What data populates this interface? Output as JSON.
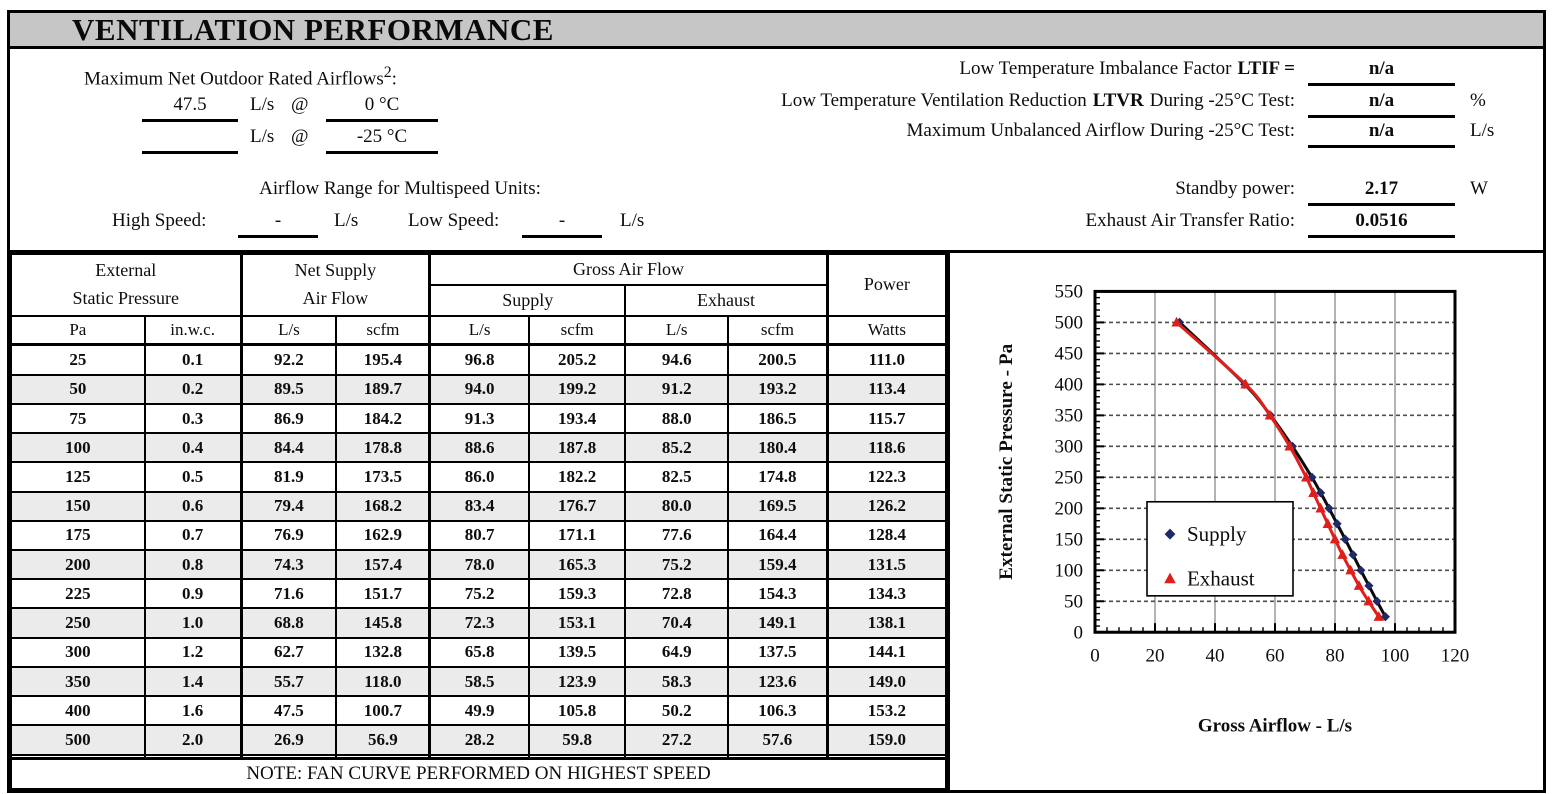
{
  "title": "VENTILATION PERFORMANCE",
  "airflows": {
    "label": "Maximum Net Outdoor Rated Airflows",
    "sup": "2",
    "colon": ":",
    "row_0c": {
      "value": "47.5",
      "unit": "L/s",
      "at": "@",
      "temp": "0 °C"
    },
    "row_m25c": {
      "value": "",
      "unit": "L/s",
      "at": "@",
      "temp": "-25 °C"
    }
  },
  "multispeed": {
    "label": "Airflow Range for Multispeed Units:",
    "high_label": "High Speed:",
    "high_value": "-",
    "high_unit": "L/s",
    "low_label": "Low Speed:",
    "low_value": "-",
    "low_unit": "L/s"
  },
  "low_temp": {
    "ltif_label": "Low Temperature Imbalance Factor",
    "ltif_bold": "LTIF =",
    "ltif_value": "n/a",
    "ltvr_label_pre": "Low Temperature Ventilation Reduction",
    "ltvr_bold": "LTVR",
    "ltvr_label_post": "During -25°C Test:",
    "ltvr_value": "n/a",
    "ltvr_unit": "%",
    "max_unbalanced_label": "Maximum Unbalanced Airflow During -25°C Test:",
    "max_unbalanced_value": "n/a",
    "max_unbalanced_unit": "L/s"
  },
  "standby": {
    "label": "Standby power:",
    "value": "2.17",
    "unit": "W"
  },
  "eatr": {
    "label": "Exhaust Air Transfer Ratio:",
    "value": "0.0516"
  },
  "table": {
    "headers": {
      "esp_line1": "External",
      "esp_line2": "Static Pressure",
      "net_line1": "Net Supply",
      "net_line2": "Air Flow",
      "gross": "Gross Air Flow",
      "supply": "Supply",
      "exhaust": "Exhaust",
      "power": "Power"
    },
    "units": [
      "Pa",
      "in.w.c.",
      "L/s",
      "scfm",
      "L/s",
      "scfm",
      "L/s",
      "scfm",
      "Watts"
    ],
    "rows": [
      [
        "25",
        "0.1",
        "92.2",
        "195.4",
        "96.8",
        "205.2",
        "94.6",
        "200.5",
        "111.0"
      ],
      [
        "50",
        "0.2",
        "89.5",
        "189.7",
        "94.0",
        "199.2",
        "91.2",
        "193.2",
        "113.4"
      ],
      [
        "75",
        "0.3",
        "86.9",
        "184.2",
        "91.3",
        "193.4",
        "88.0",
        "186.5",
        "115.7"
      ],
      [
        "100",
        "0.4",
        "84.4",
        "178.8",
        "88.6",
        "187.8",
        "85.2",
        "180.4",
        "118.6"
      ],
      [
        "125",
        "0.5",
        "81.9",
        "173.5",
        "86.0",
        "182.2",
        "82.5",
        "174.8",
        "122.3"
      ],
      [
        "150",
        "0.6",
        "79.4",
        "168.2",
        "83.4",
        "176.7",
        "80.0",
        "169.5",
        "126.2"
      ],
      [
        "175",
        "0.7",
        "76.9",
        "162.9",
        "80.7",
        "171.1",
        "77.6",
        "164.4",
        "128.4"
      ],
      [
        "200",
        "0.8",
        "74.3",
        "157.4",
        "78.0",
        "165.3",
        "75.2",
        "159.4",
        "131.5"
      ],
      [
        "225",
        "0.9",
        "71.6",
        "151.7",
        "75.2",
        "159.3",
        "72.8",
        "154.3",
        "134.3"
      ],
      [
        "250",
        "1.0",
        "68.8",
        "145.8",
        "72.3",
        "153.1",
        "70.4",
        "149.1",
        "138.1"
      ],
      [
        "300",
        "1.2",
        "62.7",
        "132.8",
        "65.8",
        "139.5",
        "64.9",
        "137.5",
        "144.1"
      ],
      [
        "350",
        "1.4",
        "55.7",
        "118.0",
        "58.5",
        "123.9",
        "58.3",
        "123.6",
        "149.0"
      ],
      [
        "400",
        "1.6",
        "47.5",
        "100.7",
        "49.9",
        "105.8",
        "50.2",
        "106.3",
        "153.2"
      ],
      [
        "500",
        "2.0",
        "26.9",
        "56.9",
        "28.2",
        "59.8",
        "27.2",
        "57.6",
        "159.0"
      ]
    ],
    "note": "NOTE: FAN CURVE PERFORMED ON HIGHEST SPEED"
  },
  "chart_data": {
    "type": "scatter",
    "title": "",
    "xlabel": "Gross Airflow - L/s",
    "ylabel": "External Static Pressure - Pa",
    "xlim": [
      0,
      120
    ],
    "ylim": [
      0,
      550
    ],
    "xticks": [
      0,
      20,
      40,
      60,
      80,
      100,
      120
    ],
    "yticks": [
      0,
      50,
      100,
      150,
      200,
      250,
      300,
      350,
      400,
      450,
      500,
      550
    ],
    "x_minor_step": 4,
    "y_minor_step": 10,
    "grid": true,
    "legend_position": "inside-left",
    "series": [
      {
        "name": "Supply",
        "marker": "diamond",
        "marker_color": "#1f2a66",
        "line_color": "#0a0a0a",
        "points": [
          [
            96.8,
            25
          ],
          [
            94.0,
            50
          ],
          [
            91.3,
            75
          ],
          [
            88.6,
            100
          ],
          [
            86.0,
            125
          ],
          [
            83.4,
            150
          ],
          [
            80.7,
            175
          ],
          [
            78.0,
            200
          ],
          [
            75.2,
            225
          ],
          [
            72.3,
            250
          ],
          [
            65.8,
            300
          ],
          [
            58.5,
            350
          ],
          [
            49.9,
            400
          ],
          [
            28.2,
            500
          ]
        ]
      },
      {
        "name": "Exhaust",
        "marker": "triangle",
        "marker_color": "#de1f1b",
        "line_color": "#de1f1b",
        "points": [
          [
            94.6,
            25
          ],
          [
            91.2,
            50
          ],
          [
            88.0,
            75
          ],
          [
            85.2,
            100
          ],
          [
            82.5,
            125
          ],
          [
            80.0,
            150
          ],
          [
            77.6,
            175
          ],
          [
            75.2,
            200
          ],
          [
            72.8,
            225
          ],
          [
            70.4,
            250
          ],
          [
            64.9,
            300
          ],
          [
            58.3,
            350
          ],
          [
            50.2,
            400
          ],
          [
            27.2,
            500
          ]
        ]
      }
    ]
  },
  "colors": {
    "title_bar_bg": "#c6c6c6",
    "row_shade": "#ebebeb",
    "grid_vertical": "#8a8a8a",
    "grid_horizontal": "#4f4f4f",
    "supply_marker": "#1f2a66",
    "exhaust": "#de1f1b"
  }
}
